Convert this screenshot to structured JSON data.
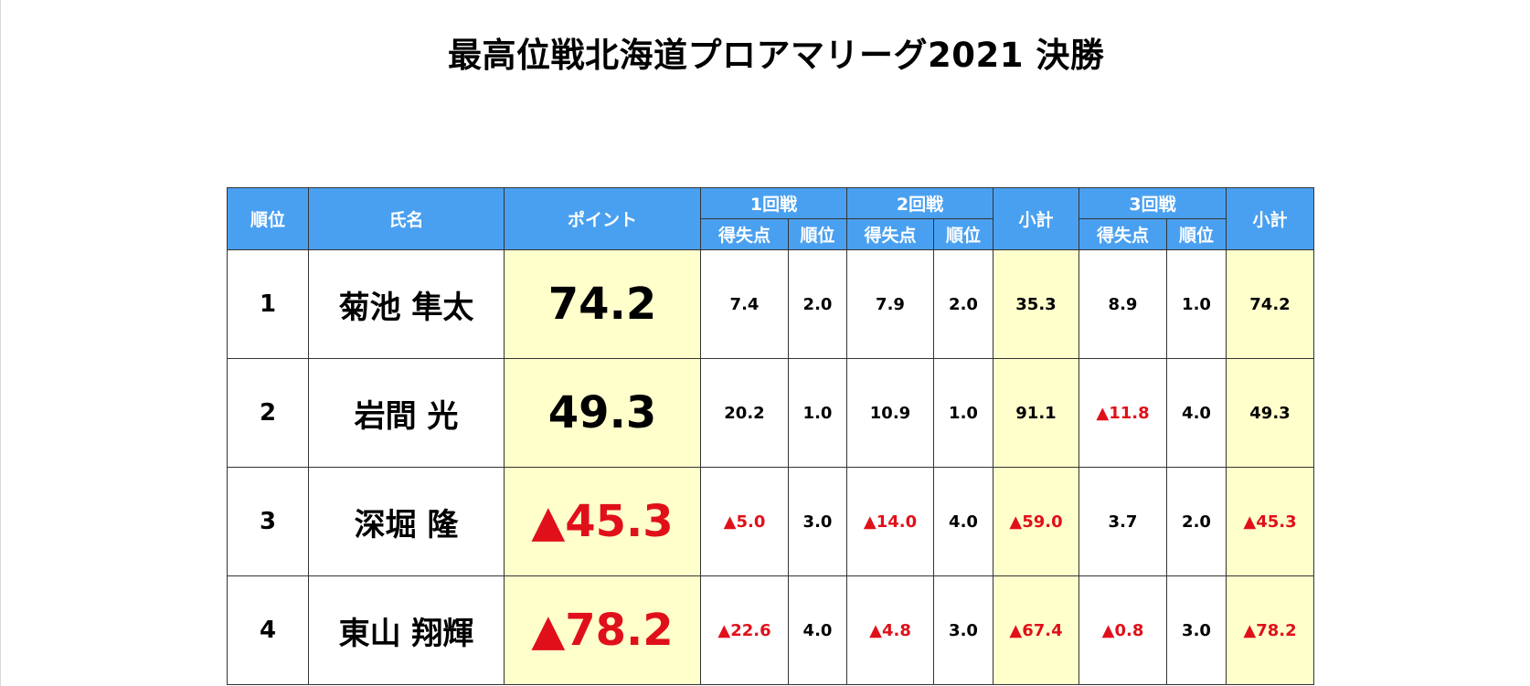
{
  "title": "最高位戦北海道プロアマリーグ2021 決勝",
  "colors": {
    "header_bg": "#4aa0f0",
    "highlight_bg": "#ffffcc",
    "negative_text": "#e0101a"
  },
  "table": {
    "headers": {
      "rank": "順位",
      "name": "氏名",
      "points": "ポイント",
      "round1": "1回戦",
      "round2": "2回戦",
      "subtotal1": "小計",
      "round3": "3回戦",
      "subtotal2": "小計",
      "score": "得失点",
      "place": "順位"
    },
    "rows": [
      {
        "rank": "1",
        "name": "菊池 隼太",
        "points": "74.2",
        "points_negative": false,
        "r1_score": "7.4",
        "r1_score_negative": false,
        "r1_place": "2.0",
        "r2_score": "7.9",
        "r2_score_negative": false,
        "r2_place": "2.0",
        "subtotal1": "35.3",
        "subtotal1_negative": false,
        "r3_score": "8.9",
        "r3_score_negative": false,
        "r3_place": "1.0",
        "subtotal2": "74.2",
        "subtotal2_negative": false
      },
      {
        "rank": "2",
        "name": "岩間 光",
        "points": "49.3",
        "points_negative": false,
        "r1_score": "20.2",
        "r1_score_negative": false,
        "r1_place": "1.0",
        "r2_score": "10.9",
        "r2_score_negative": false,
        "r2_place": "1.0",
        "subtotal1": "91.1",
        "subtotal1_negative": false,
        "r3_score": "▲11.8",
        "r3_score_negative": true,
        "r3_place": "4.0",
        "subtotal2": "49.3",
        "subtotal2_negative": false
      },
      {
        "rank": "3",
        "name": "深堀 隆",
        "points": "▲45.3",
        "points_negative": true,
        "r1_score": "▲5.0",
        "r1_score_negative": true,
        "r1_place": "3.0",
        "r2_score": "▲14.0",
        "r2_score_negative": true,
        "r2_place": "4.0",
        "subtotal1": "▲59.0",
        "subtotal1_negative": true,
        "r3_score": "3.7",
        "r3_score_negative": false,
        "r3_place": "2.0",
        "subtotal2": "▲45.3",
        "subtotal2_negative": true
      },
      {
        "rank": "4",
        "name": "東山 翔輝",
        "points": "▲78.2",
        "points_negative": true,
        "r1_score": "▲22.6",
        "r1_score_negative": true,
        "r1_place": "4.0",
        "r2_score": "▲4.8",
        "r2_score_negative": true,
        "r2_place": "3.0",
        "subtotal1": "▲67.4",
        "subtotal1_negative": true,
        "r3_score": "▲0.8",
        "r3_score_negative": true,
        "r3_place": "3.0",
        "subtotal2": "▲78.2",
        "subtotal2_negative": true
      }
    ]
  }
}
